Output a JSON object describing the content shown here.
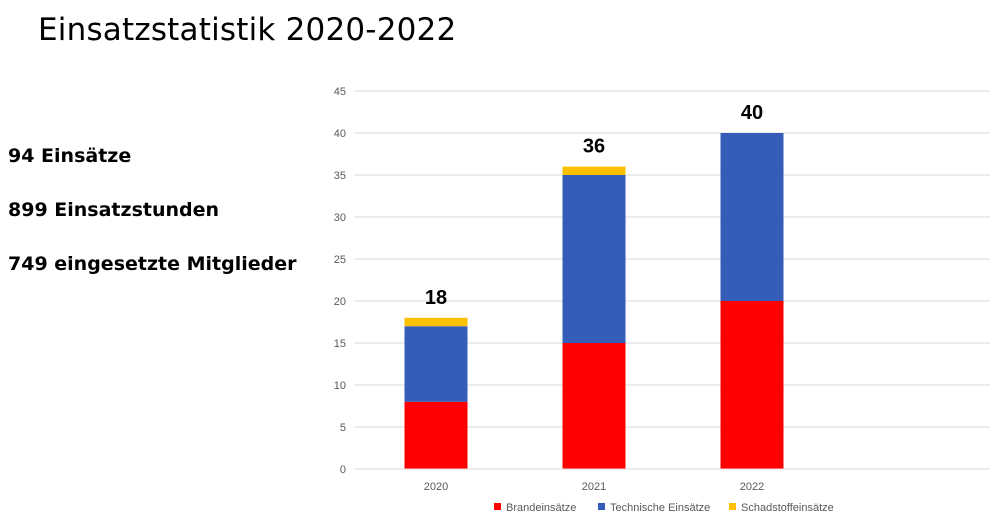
{
  "title": "Einsatzstatistik 2020-2022",
  "stats": [
    "94 Einsätze",
    "899 Einsatzstunden",
    "749 eingesetzte Mitglieder"
  ],
  "colors": {
    "Brandeinsätze": "#ff0000",
    "Technische Einsätze": "#355cb8",
    "Schadstoffeinsätze": "#ffc000",
    "grid": "#d9d9d9",
    "axis_text": "#595959"
  },
  "chart_data": {
    "type": "bar",
    "stacked": true,
    "categories": [
      "2020",
      "2021",
      "2022"
    ],
    "series": [
      {
        "name": "Brandeinsätze",
        "values": [
          8,
          15,
          20
        ]
      },
      {
        "name": "Technische Einsätze",
        "values": [
          9,
          20,
          20
        ]
      },
      {
        "name": "Schadstoffeinsätze",
        "values": [
          1,
          1,
          0
        ]
      }
    ],
    "totals": [
      18,
      36,
      40
    ],
    "ylim": [
      0,
      45
    ],
    "yticks": [
      0,
      5,
      10,
      15,
      20,
      25,
      30,
      35,
      40,
      45
    ],
    "grid": true,
    "legend": "bottom"
  }
}
